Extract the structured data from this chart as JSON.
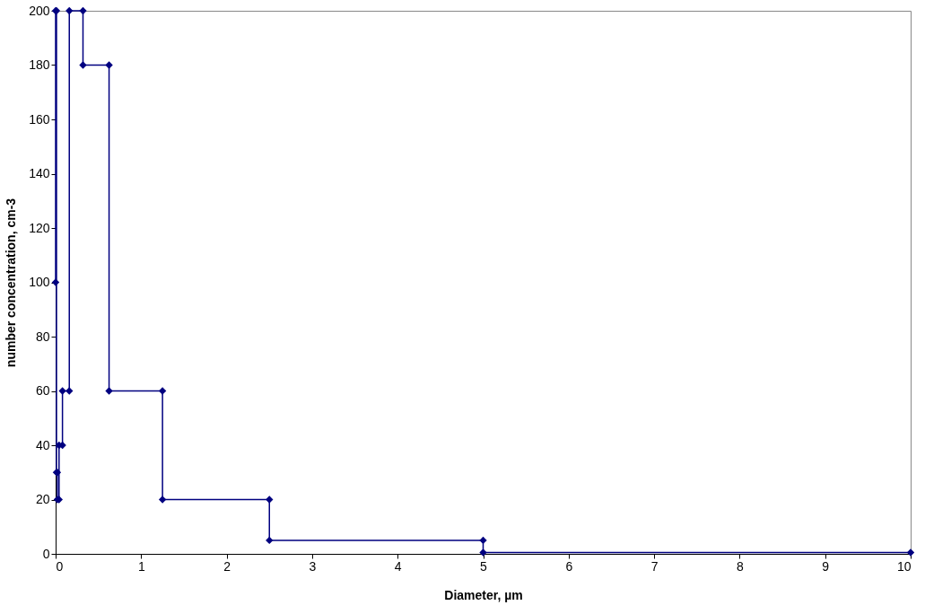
{
  "chart_data": {
    "type": "line",
    "xlabel": "Diameter, µm",
    "ylabel": "number concentration, cm-3",
    "x": [
      0,
      0,
      0.01,
      0.01,
      0.02,
      0.02,
      0.04,
      0.04,
      0.08,
      0.08,
      0.16,
      0.16,
      0.32,
      0.32,
      0.625,
      0.625,
      1.25,
      1.25,
      2.5,
      2.5,
      5,
      5,
      10
    ],
    "series": [
      {
        "color": "#000080",
        "values": [
          100,
          200,
          200,
          30,
          30,
          20,
          20,
          40,
          40,
          60,
          60,
          200,
          200,
          180,
          180,
          60,
          60,
          20,
          20,
          5,
          5,
          0.5,
          0.5
        ]
      }
    ],
    "xlim": [
      0,
      10
    ],
    "xticks": [
      0,
      1,
      2,
      3,
      4,
      5,
      6,
      7,
      8,
      9,
      10
    ],
    "ylim": [
      0,
      200
    ],
    "yticks": [
      0,
      20,
      40,
      60,
      80,
      100,
      120,
      140,
      160,
      180,
      200
    ],
    "grid": false,
    "marker": "diamond",
    "line_style": "solid"
  }
}
